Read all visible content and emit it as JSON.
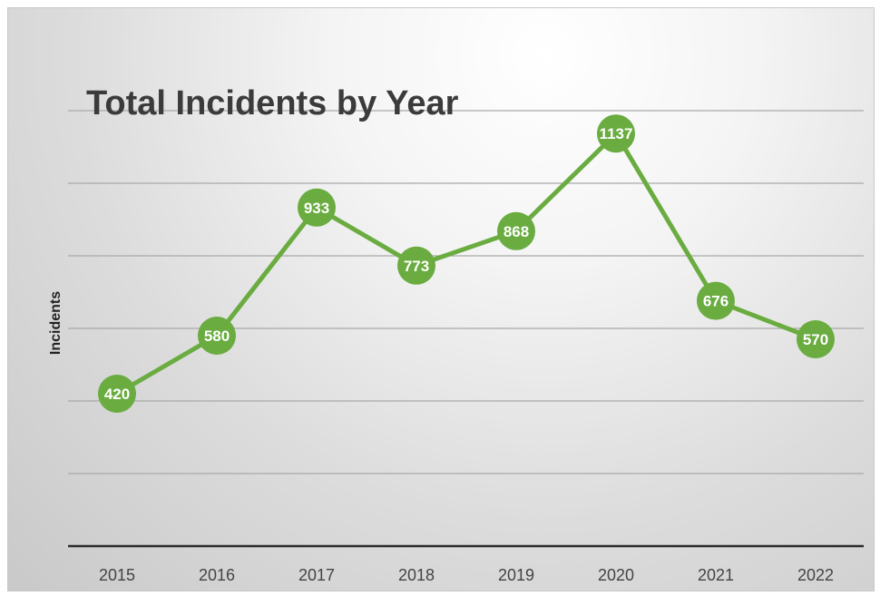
{
  "chart_data": {
    "type": "line",
    "title": "Total Incidents by Year",
    "xlabel": "",
    "ylabel": "Incidents",
    "categories": [
      "2015",
      "2016",
      "2017",
      "2018",
      "2019",
      "2020",
      "2021",
      "2022"
    ],
    "series": [
      {
        "values": [
          420,
          580,
          933,
          773,
          868,
          1137,
          676,
          570
        ]
      }
    ],
    "ylim": [
      0,
      1200
    ],
    "grid": true,
    "legend": "none",
    "colors": {
      "series": "#6aac40",
      "label": "#ffffff"
    }
  }
}
